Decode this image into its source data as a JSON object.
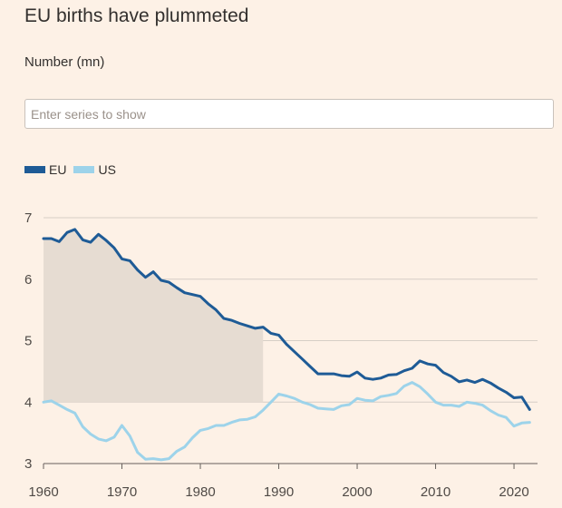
{
  "title": "EU births have plummeted",
  "subtitle": "Number (mn)",
  "search": {
    "placeholder": "Enter series to show",
    "value": ""
  },
  "colors": {
    "background": "#fdf1e6",
    "grid": "#d6cec6",
    "shade": "#e6dcd2",
    "axis": "#66605c"
  },
  "chart_data": {
    "type": "line",
    "title": "EU births have plummeted",
    "ylabel": "Number (mn)",
    "xlim": [
      1960,
      2023
    ],
    "ylim": [
      3,
      7
    ],
    "yticks": [
      3,
      4,
      5,
      6,
      7
    ],
    "xticks": [
      1960,
      1970,
      1980,
      1990,
      2000,
      2010,
      2020
    ],
    "grid": true,
    "legend": "top-left",
    "shaded_region": {
      "x_start": 1960,
      "x_end": 1988,
      "y_start": 4
    },
    "series": [
      {
        "name": "EU",
        "color": "#1e5b96",
        "points": [
          [
            1960,
            6.66
          ],
          [
            1961,
            6.66
          ],
          [
            1962,
            6.61
          ],
          [
            1963,
            6.76
          ],
          [
            1964,
            6.81
          ],
          [
            1965,
            6.64
          ],
          [
            1966,
            6.6
          ],
          [
            1967,
            6.73
          ],
          [
            1968,
            6.63
          ],
          [
            1969,
            6.51
          ],
          [
            1970,
            6.33
          ],
          [
            1971,
            6.3
          ],
          [
            1972,
            6.15
          ],
          [
            1973,
            6.03
          ],
          [
            1974,
            6.12
          ],
          [
            1975,
            5.98
          ],
          [
            1976,
            5.95
          ],
          [
            1977,
            5.86
          ],
          [
            1978,
            5.78
          ],
          [
            1979,
            5.75
          ],
          [
            1980,
            5.72
          ],
          [
            1981,
            5.6
          ],
          [
            1982,
            5.5
          ],
          [
            1983,
            5.36
          ],
          [
            1984,
            5.33
          ],
          [
            1985,
            5.28
          ],
          [
            1986,
            5.24
          ],
          [
            1987,
            5.2
          ],
          [
            1988,
            5.22
          ],
          [
            1989,
            5.12
          ],
          [
            1990,
            5.09
          ],
          [
            1991,
            4.94
          ],
          [
            1992,
            4.82
          ],
          [
            1993,
            4.7
          ],
          [
            1994,
            4.58
          ],
          [
            1995,
            4.46
          ],
          [
            1996,
            4.46
          ],
          [
            1997,
            4.46
          ],
          [
            1998,
            4.43
          ],
          [
            1999,
            4.42
          ],
          [
            2000,
            4.49
          ],
          [
            2001,
            4.39
          ],
          [
            2002,
            4.37
          ],
          [
            2003,
            4.39
          ],
          [
            2004,
            4.44
          ],
          [
            2005,
            4.45
          ],
          [
            2006,
            4.51
          ],
          [
            2007,
            4.55
          ],
          [
            2008,
            4.67
          ],
          [
            2009,
            4.62
          ],
          [
            2010,
            4.6
          ],
          [
            2011,
            4.48
          ],
          [
            2012,
            4.42
          ],
          [
            2013,
            4.33
          ],
          [
            2014,
            4.36
          ],
          [
            2015,
            4.32
          ],
          [
            2016,
            4.37
          ],
          [
            2017,
            4.31
          ],
          [
            2018,
            4.23
          ],
          [
            2019,
            4.16
          ],
          [
            2020,
            4.07
          ],
          [
            2021,
            4.08
          ],
          [
            2022,
            3.88
          ]
        ]
      },
      {
        "name": "US",
        "color": "#9dd3ea",
        "points": [
          [
            1960,
            4.0
          ],
          [
            1961,
            4.02
          ],
          [
            1962,
            3.95
          ],
          [
            1963,
            3.88
          ],
          [
            1964,
            3.82
          ],
          [
            1965,
            3.6
          ],
          [
            1966,
            3.48
          ],
          [
            1967,
            3.4
          ],
          [
            1968,
            3.37
          ],
          [
            1969,
            3.43
          ],
          [
            1970,
            3.62
          ],
          [
            1971,
            3.45
          ],
          [
            1972,
            3.18
          ],
          [
            1973,
            3.07
          ],
          [
            1974,
            3.08
          ],
          [
            1975,
            3.06
          ],
          [
            1976,
            3.08
          ],
          [
            1977,
            3.2
          ],
          [
            1978,
            3.27
          ],
          [
            1979,
            3.42
          ],
          [
            1980,
            3.54
          ],
          [
            1981,
            3.57
          ],
          [
            1982,
            3.62
          ],
          [
            1983,
            3.62
          ],
          [
            1984,
            3.67
          ],
          [
            1985,
            3.71
          ],
          [
            1986,
            3.72
          ],
          [
            1987,
            3.76
          ],
          [
            1988,
            3.87
          ],
          [
            1989,
            4.0
          ],
          [
            1990,
            4.13
          ],
          [
            1991,
            4.1
          ],
          [
            1992,
            4.06
          ],
          [
            1993,
            4.0
          ],
          [
            1994,
            3.96
          ],
          [
            1995,
            3.9
          ],
          [
            1996,
            3.89
          ],
          [
            1997,
            3.88
          ],
          [
            1998,
            3.94
          ],
          [
            1999,
            3.96
          ],
          [
            2000,
            4.06
          ],
          [
            2001,
            4.03
          ],
          [
            2002,
            4.02
          ],
          [
            2003,
            4.09
          ],
          [
            2004,
            4.11
          ],
          [
            2005,
            4.14
          ],
          [
            2006,
            4.26
          ],
          [
            2007,
            4.32
          ],
          [
            2008,
            4.25
          ],
          [
            2009,
            4.13
          ],
          [
            2010,
            4.0
          ],
          [
            2011,
            3.95
          ],
          [
            2012,
            3.95
          ],
          [
            2013,
            3.93
          ],
          [
            2014,
            4.0
          ],
          [
            2015,
            3.98
          ],
          [
            2016,
            3.95
          ],
          [
            2017,
            3.86
          ],
          [
            2018,
            3.79
          ],
          [
            2019,
            3.75
          ],
          [
            2020,
            3.61
          ],
          [
            2021,
            3.66
          ],
          [
            2022,
            3.67
          ]
        ]
      }
    ]
  }
}
